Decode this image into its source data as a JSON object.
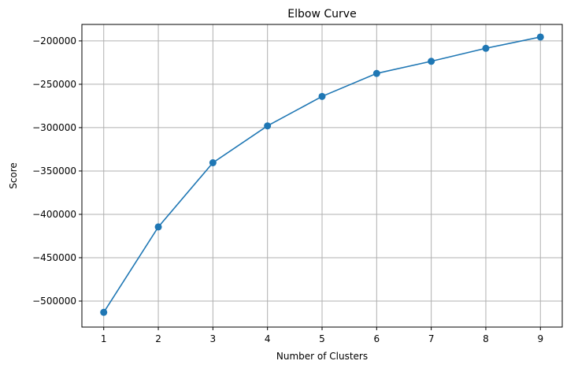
{
  "chart_data": {
    "type": "line",
    "title": "Elbow Curve",
    "xlabel": "Number of Clusters",
    "ylabel": "Score",
    "x": [
      1,
      2,
      3,
      4,
      5,
      6,
      7,
      8,
      9
    ],
    "series": [
      {
        "values": [
          -513000,
          -414500,
          -340500,
          -298000,
          -264000,
          -237500,
          -223500,
          -208500,
          -195500
        ],
        "color": "#1f77b4",
        "marker": "circle"
      }
    ],
    "xlim": [
      0.6,
      9.4
    ],
    "ylim": [
      -530000,
      -181000
    ],
    "xticks": [
      1,
      2,
      3,
      4,
      5,
      6,
      7,
      8,
      9
    ],
    "yticks": [
      -200000,
      -250000,
      -300000,
      -350000,
      -400000,
      -450000,
      -500000
    ],
    "ytick_labels": [
      "−200000",
      "−250000",
      "−300000",
      "−350000",
      "−400000",
      "−450000",
      "−500000"
    ],
    "grid": true,
    "grid_color": "#b0b0b0"
  }
}
